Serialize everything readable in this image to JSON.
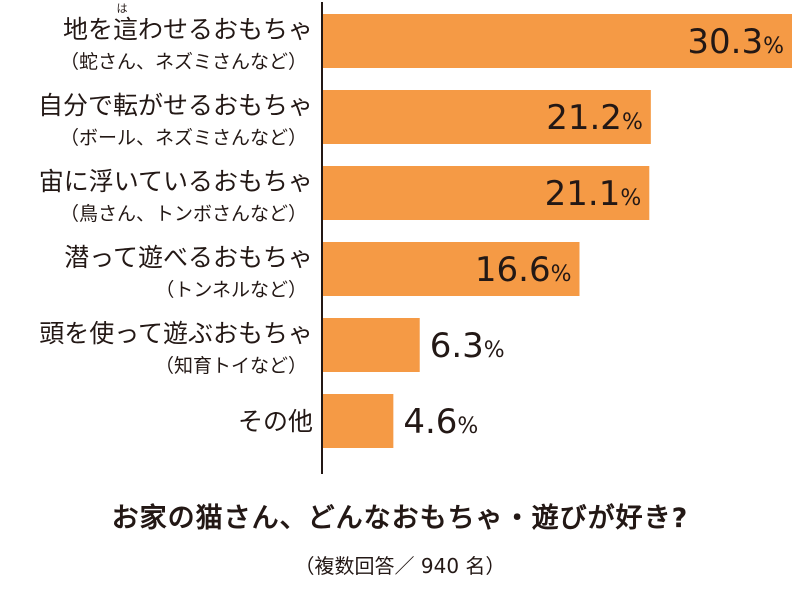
{
  "chart_data": {
    "type": "bar",
    "orientation": "horizontal",
    "title": "お家の猫さん、どんなおもちゃ・遊びが好き?",
    "subtitle": "（複数回答／ 940 名）",
    "categories": [
      {
        "main": "地を這わせるおもちゃ",
        "sub": "（蛇さん、ネズミさんなど）",
        "ruby": "は"
      },
      {
        "main": "自分で転がせるおもちゃ",
        "sub": "（ボール、ネズミさんなど）"
      },
      {
        "main": "宙に浮いているおもちゃ",
        "sub": "（鳥さん、トンボさんなど）"
      },
      {
        "main": "潜って遊べるおもちゃ",
        "sub": "（トンネルなど）"
      },
      {
        "main": "頭を使って遊ぶおもちゃ",
        "sub": "（知育トイなど）"
      },
      {
        "main": "その他",
        "sub": ""
      }
    ],
    "values": [
      30.3,
      21.2,
      21.1,
      16.6,
      6.3,
      4.6
    ],
    "value_labels": [
      "30.3",
      "21.2",
      "21.1",
      "16.6",
      "6.3",
      "4.6"
    ],
    "unit": "%",
    "xlim": [
      0,
      30.3
    ],
    "grid": false,
    "legend": "none",
    "colors": {
      "bar": "#F59A45",
      "text": "#231815",
      "axis": "#231815"
    }
  }
}
